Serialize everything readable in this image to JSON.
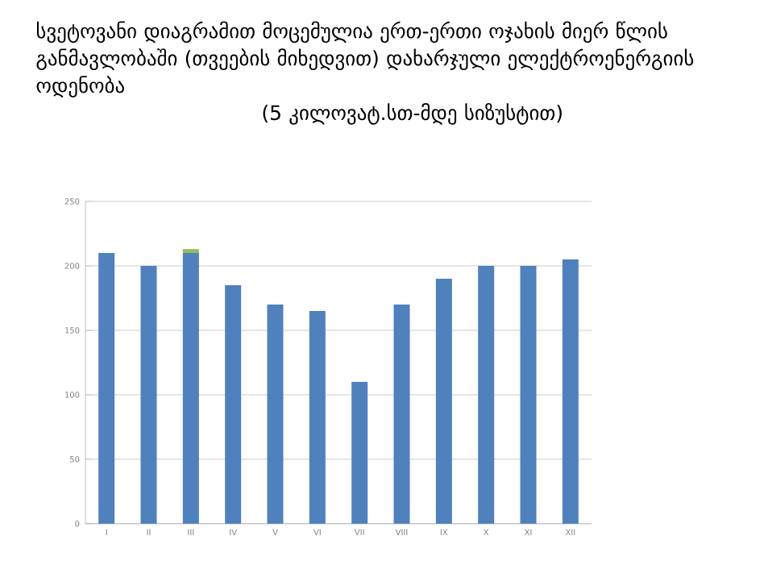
{
  "chart_data": {
    "type": "bar",
    "title": "სვეტოვანი დიაგრამით მოცემულია ერთ-ერთი ოჯახის მიერ წლის განმავლობაში (თვეების მიხედვით) დახარჯული ელექტროენერგიის ოდენობა",
    "subtitle": "(5 კილოვატ.სთ-მდე სიზუსტით)",
    "categories": [
      "I",
      "II",
      "III",
      "IV",
      "V",
      "VI",
      "VII",
      "VIII",
      "IX",
      "X",
      "XI",
      "XII"
    ],
    "series": [
      {
        "color": "#4f81bd",
        "values": [
          210,
          200,
          210,
          185,
          170,
          165,
          110,
          170,
          190,
          200,
          200,
          205
        ]
      },
      {
        "color": "#9bbb59",
        "values": [
          null,
          null,
          3,
          null,
          null,
          null,
          null,
          null,
          null,
          null,
          null,
          null
        ]
      }
    ],
    "stacked": true,
    "ylim": [
      0,
      250
    ],
    "yticks": [
      0,
      50,
      100,
      150,
      200,
      250
    ],
    "grid": "y"
  }
}
